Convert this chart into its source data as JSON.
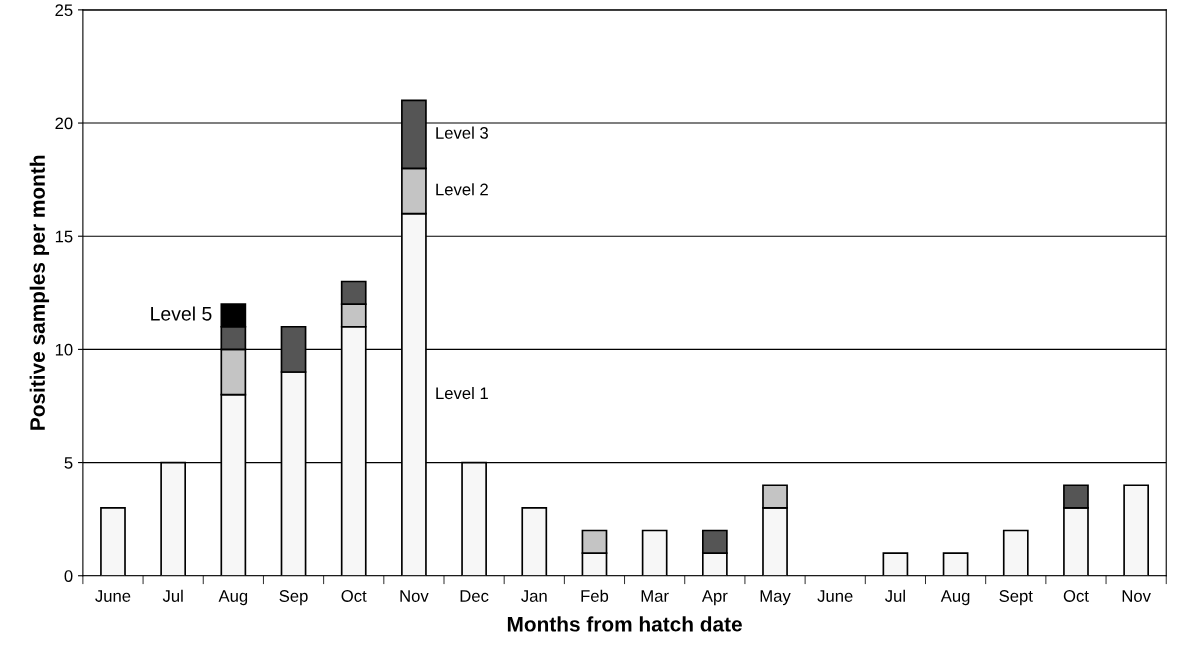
{
  "chart_data": {
    "type": "bar",
    "stacked": true,
    "xlabel": "Months from hatch date",
    "ylabel": "Positive samples per month",
    "categories": [
      "June",
      "Jul",
      "Aug",
      "Sep",
      "Oct",
      "Nov",
      "Dec",
      "Jan",
      "Feb",
      "Mar",
      "Apr",
      "May",
      "June",
      "Jul",
      "Aug",
      "Sept",
      "Oct",
      "Nov"
    ],
    "series": [
      {
        "name": "Level 1",
        "color": "#f7f7f7",
        "values": [
          3,
          5,
          8,
          9,
          11,
          16,
          5,
          3,
          1,
          2,
          1,
          3,
          0,
          1,
          1,
          2,
          3,
          4
        ]
      },
      {
        "name": "Level 2",
        "color": "#c4c4c4",
        "values": [
          0,
          0,
          2,
          0,
          1,
          2,
          0,
          0,
          1,
          0,
          0,
          1,
          0,
          0,
          0,
          0,
          0,
          0
        ]
      },
      {
        "name": "Level 3",
        "color": "#555555",
        "values": [
          0,
          0,
          1,
          2,
          1,
          3,
          0,
          0,
          0,
          0,
          1,
          0,
          0,
          0,
          0,
          0,
          1,
          0
        ]
      },
      {
        "name": "Level 5",
        "color": "#000000",
        "values": [
          0,
          0,
          1,
          0,
          0,
          0,
          0,
          0,
          0,
          0,
          0,
          0,
          0,
          0,
          0,
          0,
          0,
          0
        ]
      }
    ],
    "ylim": [
      0,
      25
    ],
    "yticks": [
      0,
      5,
      10,
      15,
      20,
      25
    ],
    "grid": "y",
    "legend": false
  }
}
